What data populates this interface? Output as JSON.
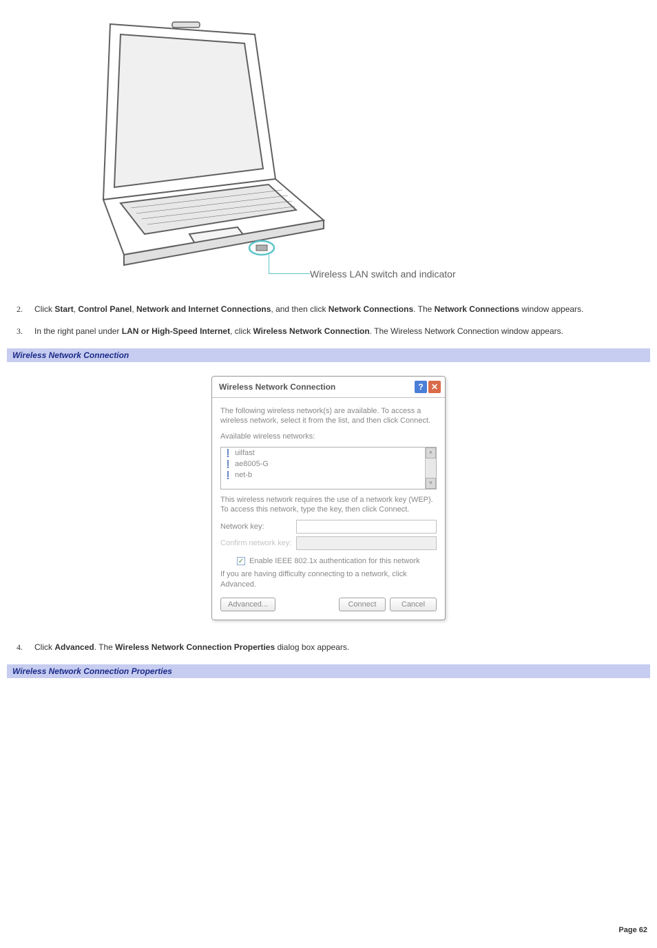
{
  "figure": {
    "caption": "Wireless LAN switch and indicator",
    "highlight_color": "#5ac3c9",
    "stroke_color": "#606060"
  },
  "steps_a": [
    {
      "num": "2.",
      "html_parts": [
        "Click ",
        [
          "b",
          "Start"
        ],
        ", ",
        [
          "b",
          "Control Panel"
        ],
        ", ",
        [
          "b",
          "Network and Internet Connections"
        ],
        ", and then click ",
        [
          "b",
          "Network Connections"
        ],
        ". The ",
        [
          "b",
          "Network Connections"
        ],
        " window appears."
      ]
    },
    {
      "num": "3.",
      "html_parts": [
        "In the right panel under ",
        [
          "b",
          "LAN or High-Speed Internet"
        ],
        ", click ",
        [
          "b",
          "Wireless Network Connection"
        ],
        ". The Wireless Network Connection window appears."
      ]
    }
  ],
  "heading1": "Wireless Network Connection",
  "dialog": {
    "title": "Wireless Network Connection",
    "help_glyph": "?",
    "close_glyph": "✕",
    "intro": "The following wireless network(s) are available. To access a wireless network, select it from the list, and then click Connect.",
    "available_label": "Available wireless networks:",
    "networks": [
      "uilfast",
      "ae8005-G",
      "net-b"
    ],
    "wep_text": "This wireless network requires the use of a network key (WEP). To access this network, type the key, then click Connect.",
    "key_label": "Network key:",
    "confirm_label": "Confirm network key:",
    "checkbox_label": "Enable IEEE 802.1x authentication for this network",
    "checkbox_checked": true,
    "difficulty_text": "If you are having difficulty connecting to a network, click Advanced.",
    "advanced_btn": "Advanced...",
    "connect_btn": "Connect",
    "cancel_btn": "Cancel",
    "scroll_up": "˄",
    "scroll_down": "˅"
  },
  "steps_b": [
    {
      "num": "4.",
      "html_parts": [
        "Click ",
        [
          "b",
          "Advanced"
        ],
        ". The ",
        [
          "b",
          "Wireless Network Connection Properties"
        ],
        " dialog box appears."
      ]
    }
  ],
  "heading2": "Wireless Network Connection Properties",
  "footer": "Page 62"
}
